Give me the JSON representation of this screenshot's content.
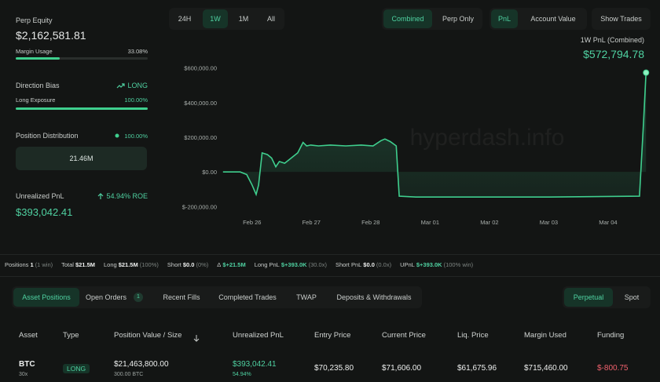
{
  "sidebar": {
    "equity": {
      "label": "Perp Equity",
      "value": "$2,162,581.81",
      "bar_label": "Margin Usage",
      "bar_value": "33.08%"
    },
    "bias": {
      "label": "Direction Bias",
      "value": "LONG",
      "bar_label": "Long Exposure",
      "bar_value": "100.00%"
    },
    "distribution": {
      "label": "Position Distribution",
      "value": "100.00%",
      "box": "21.46M"
    },
    "upnl": {
      "label": "Unrealized PnL",
      "roe": "54.94% ROE",
      "value": "$393,042.41"
    }
  },
  "range_tabs": [
    "24H",
    "1W",
    "1M",
    "All"
  ],
  "view_tabs": [
    "Combined",
    "Perp Only"
  ],
  "metric_tabs": [
    "PnL",
    "Account Value"
  ],
  "show_trades": "Show Trades",
  "watermark": "hyperdash.info",
  "chart_data": {
    "type": "line",
    "title": "1W PnL (Combined)",
    "annotation": "$572,794.78",
    "color": "#3fcf8e",
    "grid": false,
    "x": [
      -0.49,
      -0.2,
      -0.09,
      0,
      0.07,
      0.11,
      0.17,
      0.26,
      0.33,
      0.4,
      0.46,
      0.55,
      0.66,
      0.77,
      0.86,
      0.92,
      0.99,
      1.12,
      1.32,
      1.58,
      1.84,
      2.04,
      2.17,
      2.24,
      2.33,
      2.43,
      2.48,
      2.76,
      3.69,
      5.01,
      6.53,
      6.6,
      6.64
    ],
    "values": [
      0,
      0,
      -15000,
      -75000,
      -130000,
      -75000,
      110000,
      100000,
      80000,
      30000,
      60000,
      50000,
      80000,
      110000,
      170000,
      150000,
      155000,
      150000,
      155000,
      150000,
      155000,
      150000,
      180000,
      190000,
      175000,
      150000,
      -140000,
      -145000,
      -145000,
      -145000,
      -140000,
      300000,
      572794.78
    ],
    "xlim": [
      -0.5,
      6.65
    ],
    "xticks": [
      {
        "value": 0,
        "label": "Feb 26"
      },
      {
        "value": 1,
        "label": "Feb 27"
      },
      {
        "value": 2,
        "label": "Feb 28"
      },
      {
        "value": 3,
        "label": "Mar 01"
      },
      {
        "value": 4,
        "label": "Mar 02"
      },
      {
        "value": 5,
        "label": "Mar 03"
      },
      {
        "value": 6,
        "label": "Mar 04"
      }
    ],
    "ylim": [
      -230000,
      630000
    ],
    "yticks": [
      {
        "value": 600000,
        "label": "$600,000.00"
      },
      {
        "value": 400000,
        "label": "$400,000.00"
      },
      {
        "value": 200000,
        "label": "$200,000.00"
      },
      {
        "value": 0,
        "label": "$0.00"
      },
      {
        "value": -200000,
        "label": "$-200,000.00"
      }
    ]
  },
  "stats": [
    {
      "label": "Positions",
      "value": "1",
      "detail": "(1 win)"
    },
    {
      "label": "Total",
      "value": "$21.5M"
    },
    {
      "label": "Long",
      "value": "$21.5M",
      "detail": "(100%)"
    },
    {
      "label": "Short",
      "value": "$0.0",
      "detail": "(0%)"
    },
    {
      "label": "Δ",
      "value": "$+21.5M"
    },
    {
      "label": "Long PnL",
      "value": "$+393.0K",
      "detail": "(30.0x)"
    },
    {
      "label": "Short PnL",
      "value": "$0.0",
      "detail": "(0.0x)"
    },
    {
      "label": "UPnL",
      "value": "$+393.0K",
      "detail": "(100% win)"
    }
  ],
  "table_tabs": [
    "Asset Positions",
    "Open Orders",
    "Recent Fills",
    "Completed Trades",
    "TWAP",
    "Deposits & Withdrawals"
  ],
  "open_orders_count": "1",
  "market_tabs": [
    "Perpetual",
    "Spot"
  ],
  "table": {
    "headers": [
      "Asset",
      "Type",
      "Position Value / Size",
      "Unrealized PnL",
      "Entry Price",
      "Current Price",
      "Liq. Price",
      "Margin Used",
      "Funding"
    ],
    "rows": [
      [
        {
          "main": "BTC",
          "sub": "30x"
        },
        {
          "main": "LONG"
        },
        {
          "main": "$21,463,800.00",
          "sub": "300.00 BTC"
        },
        {
          "main": "$393,042.41",
          "sub": "54.94%"
        },
        {
          "main": "$70,235.80"
        },
        {
          "main": "$71,606.00"
        },
        {
          "main": "$61,675.96"
        },
        {
          "main": "$715,460.00"
        },
        {
          "main": "$-800.75"
        }
      ]
    ]
  }
}
